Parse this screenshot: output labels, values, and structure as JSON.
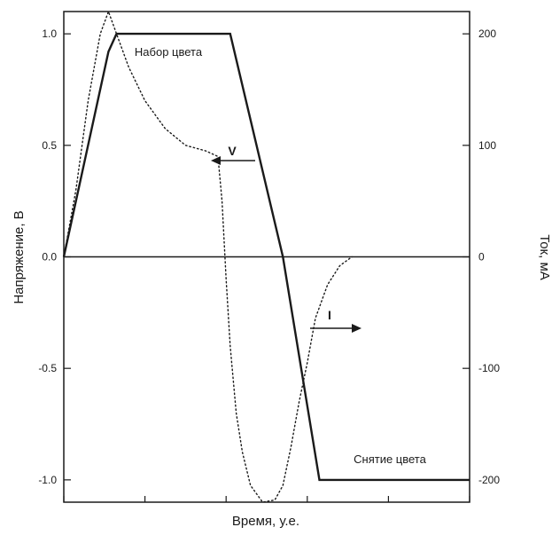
{
  "chart_data": {
    "type": "line",
    "xlabel": "Время, у.е.",
    "ylabel_left": "Напряжение, В",
    "ylabel_right": "Ток, мА",
    "ylim_left": [
      -1.1,
      1.1
    ],
    "ylim_right": [
      -220,
      220
    ],
    "yticks_left": [
      {
        "value": 1.0,
        "label": "1.0"
      },
      {
        "value": 0.5,
        "label": "0.5"
      },
      {
        "value": 0.0,
        "label": "0.0"
      },
      {
        "value": -0.5,
        "label": "-0.5"
      },
      {
        "value": -1.0,
        "label": "-1.0"
      }
    ],
    "yticks_right": [
      {
        "value": 200,
        "label": "200"
      },
      {
        "value": 100,
        "label": "100"
      },
      {
        "value": 0,
        "label": "0"
      },
      {
        "value": -100,
        "label": "-100"
      },
      {
        "value": -200,
        "label": "-200"
      }
    ],
    "xlim": [
      0,
      10
    ],
    "xticks": [
      0,
      2,
      4,
      6,
      8,
      10
    ],
    "grid": false,
    "series": [
      {
        "name": "V",
        "axis": "left",
        "style": "solid",
        "x": [
          0,
          1.1,
          1.3,
          4.1,
          5.4,
          6.3,
          10
        ],
        "y": [
          0.0,
          0.92,
          1.0,
          1.0,
          0.0,
          -1.0,
          -1.0
        ]
      },
      {
        "name": "I",
        "axis": "right",
        "style": "dotted",
        "x": [
          0.0,
          0.3,
          0.6,
          0.9,
          1.1,
          1.3,
          1.6,
          2.0,
          2.5,
          3.0,
          3.5,
          3.8,
          3.9,
          4.0,
          4.1,
          4.25,
          4.4,
          4.6,
          4.9,
          5.2,
          5.4,
          5.6,
          5.8,
          6.0,
          6.2,
          6.5,
          6.8,
          7.1
        ],
        "y": [
          0,
          60,
          140,
          200,
          220,
          200,
          170,
          140,
          115,
          100,
          95,
          90,
          50,
          -20,
          -80,
          -140,
          -175,
          -205,
          -220,
          -218,
          -205,
          -170,
          -130,
          -95,
          -55,
          -25,
          -8,
          0
        ]
      }
    ],
    "annotations": [
      {
        "text": "Набор цвета"
      },
      {
        "text": "Снятие цвета"
      },
      {
        "text": "V"
      },
      {
        "text": "I"
      }
    ]
  }
}
